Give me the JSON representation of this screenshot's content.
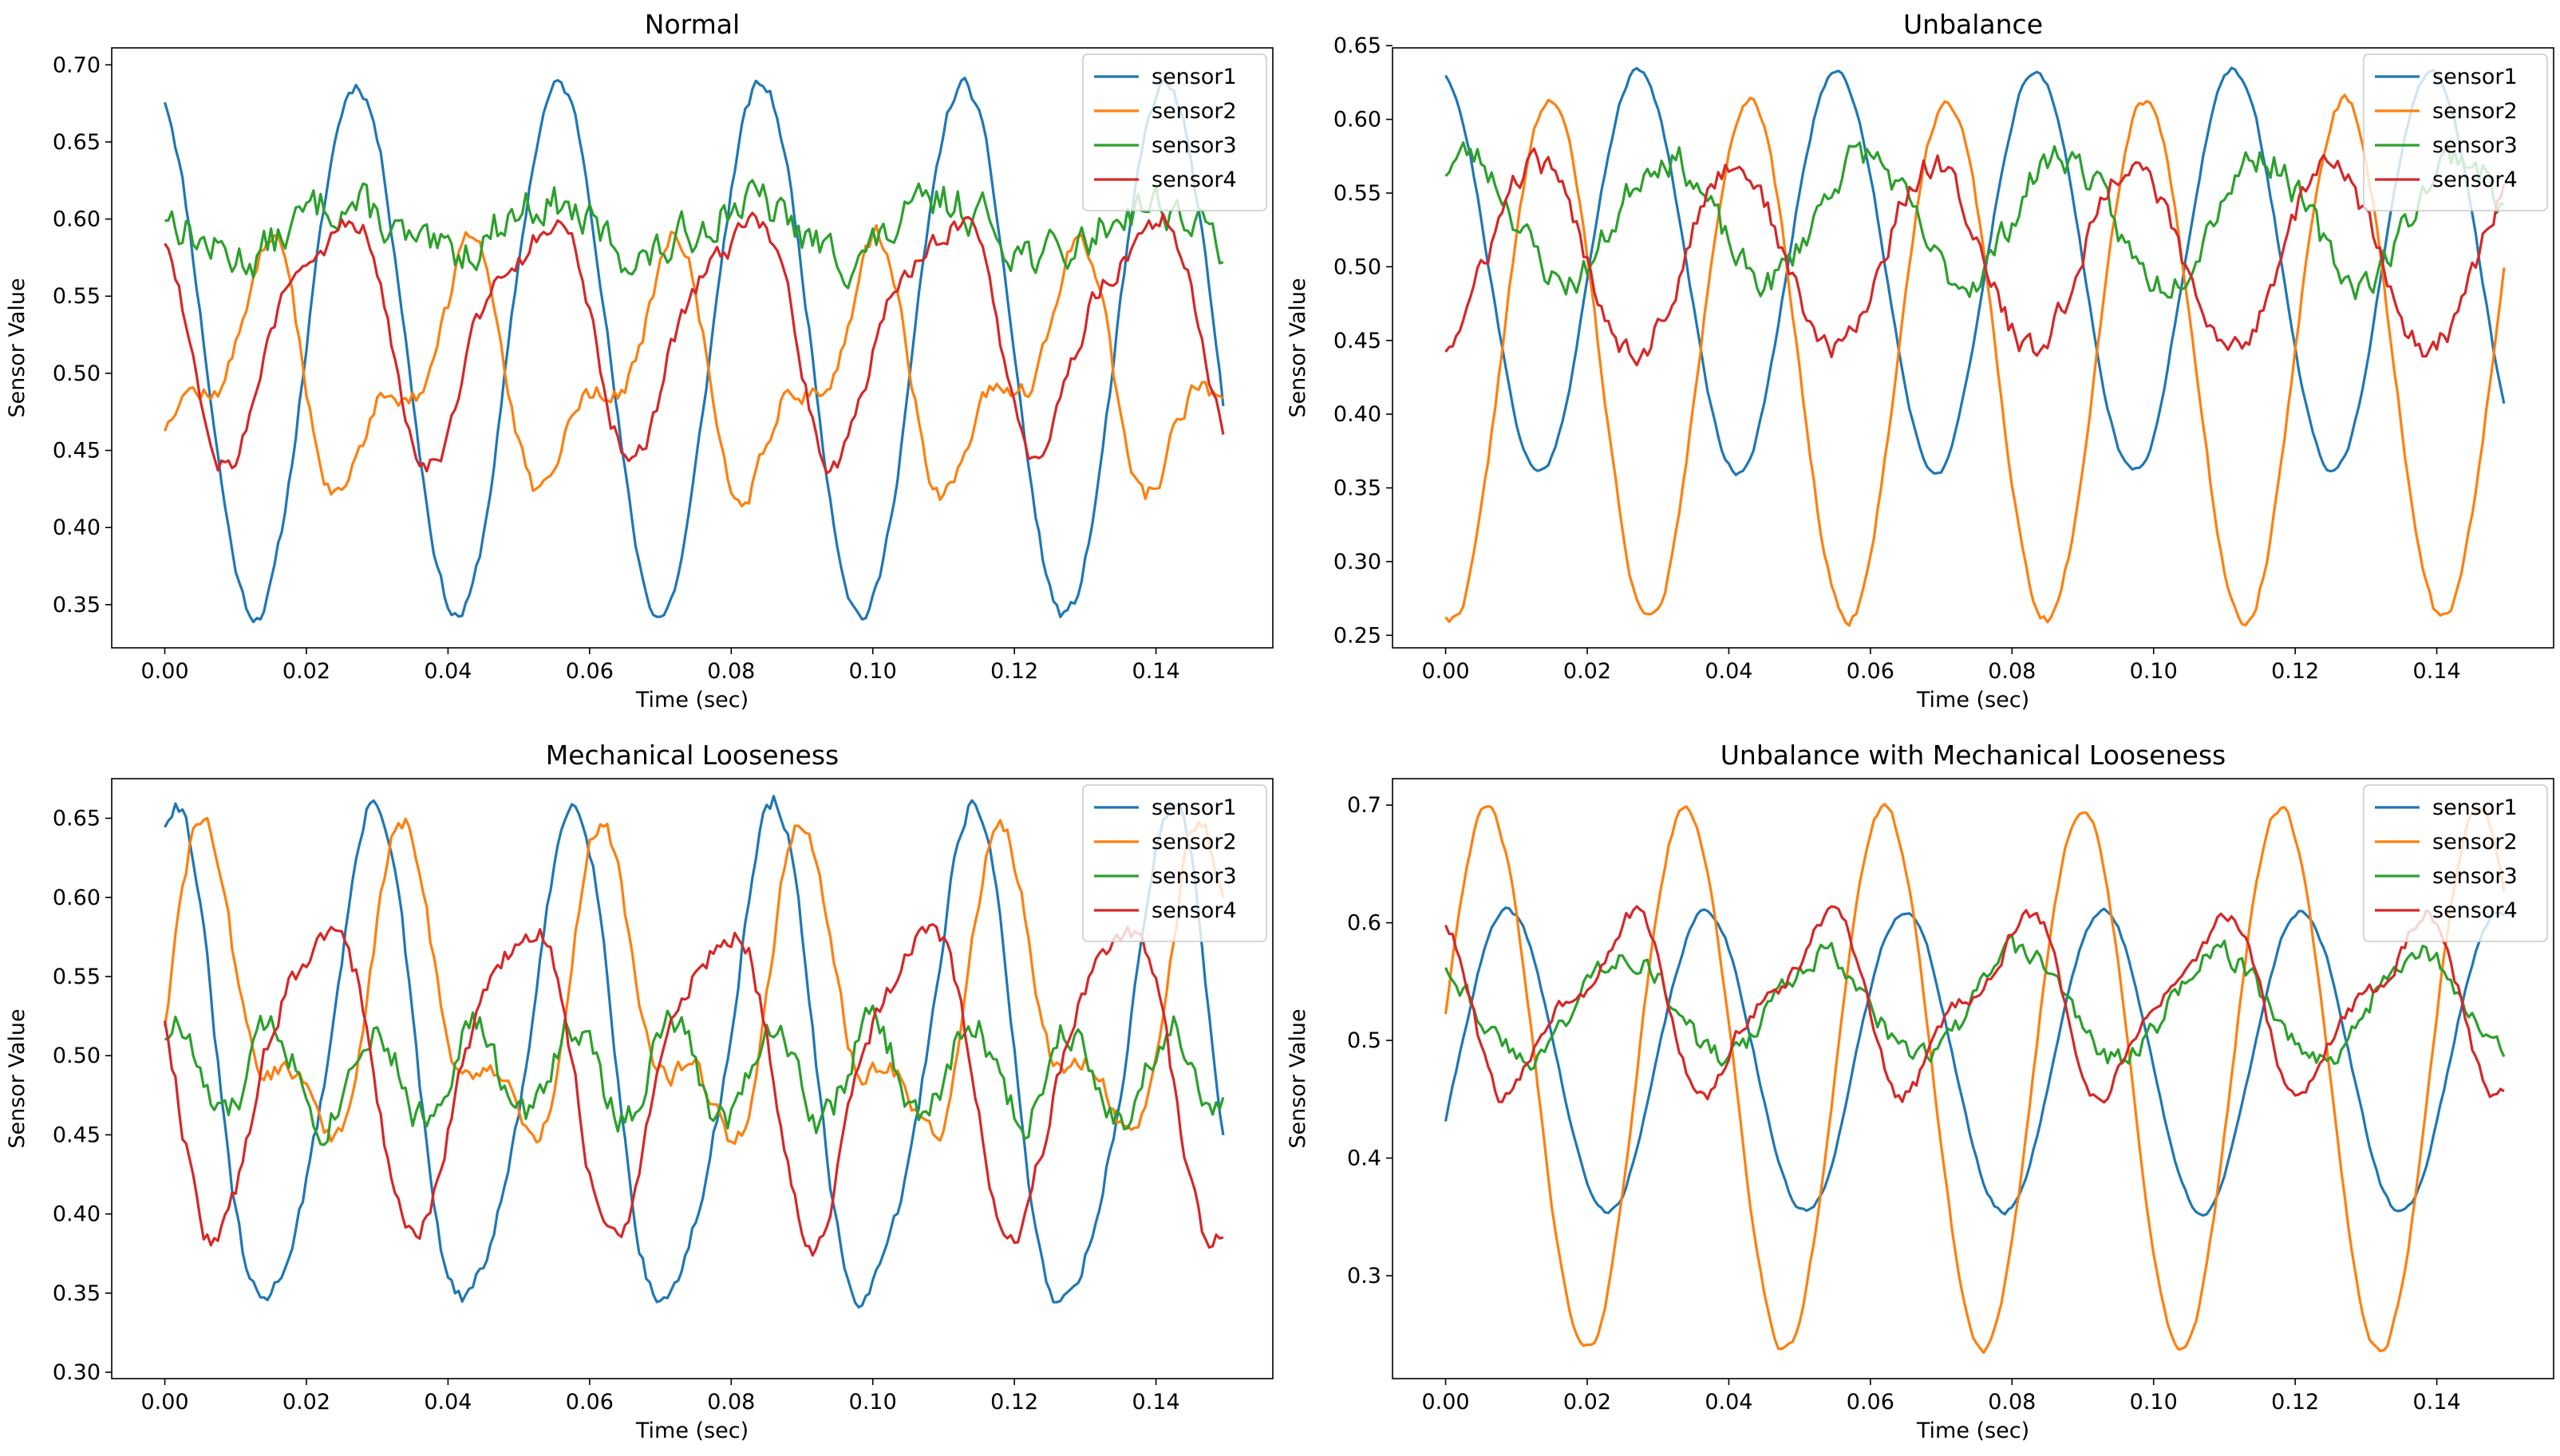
{
  "figure": {
    "layout": "2x2 grid"
  },
  "chart_data": [
    {
      "type": "line",
      "title": "Normal",
      "xlabel": "Time (sec)",
      "ylabel": "Sensor Value",
      "xlim": [
        -0.0075,
        0.1565
      ],
      "ylim": [
        0.322,
        0.711
      ],
      "xticks": [
        0.0,
        0.02,
        0.04,
        0.06,
        0.08,
        0.1,
        0.12,
        0.14
      ],
      "yticks": [
        0.35,
        0.4,
        0.45,
        0.5,
        0.55,
        0.6,
        0.65,
        0.7
      ],
      "tick_decimals": 2,
      "grid": false,
      "legend": "top-right",
      "series": [
        {
          "name": "sensor1",
          "color": "#1f77b4",
          "type": "sin",
          "offset": 0.515,
          "amp": 0.172,
          "freq": 35.0,
          "phase": 1.9,
          "noise": 0.004,
          "seed": 11
        },
        {
          "name": "sensor2",
          "color": "#ff7f0e",
          "type": "sin2",
          "offset": 0.498,
          "amp": 0.062,
          "freq": 35.0,
          "phase": -1.3,
          "amp2": 0.035,
          "freq2": 70.0,
          "phase2": 0.9,
          "noise": 0.006,
          "seed": 12
        },
        {
          "name": "sensor3",
          "color": "#2ca02c",
          "type": "sin",
          "offset": 0.593,
          "amp": 0.018,
          "freq": 35.0,
          "phase": 2.4,
          "noise": 0.012,
          "seed": 13
        },
        {
          "name": "sensor4",
          "color": "#d62728",
          "type": "sin2",
          "offset": 0.532,
          "amp": 0.072,
          "freq": 35.0,
          "phase": 2.6,
          "amp2": 0.02,
          "freq2": 70.0,
          "phase2": 1.2,
          "noise": 0.007,
          "seed": 14
        }
      ]
    },
    {
      "type": "line",
      "title": "Unbalance",
      "xlabel": "Time (sec)",
      "ylabel": "Sensor Value",
      "xlim": [
        -0.0075,
        0.1565
      ],
      "ylim": [
        0.2415,
        0.6485
      ],
      "xticks": [
        0.0,
        0.02,
        0.04,
        0.06,
        0.08,
        0.1,
        0.12,
        0.14
      ],
      "yticks": [
        0.25,
        0.3,
        0.35,
        0.4,
        0.45,
        0.5,
        0.55,
        0.6,
        0.65
      ],
      "tick_decimals": 2,
      "grid": false,
      "legend": "top-right",
      "series": [
        {
          "name": "sensor1",
          "color": "#1f77b4",
          "type": "sin",
          "offset": 0.497,
          "amp": 0.136,
          "freq": 35.7,
          "phase": 1.75,
          "noise": 0.002,
          "seed": 21
        },
        {
          "name": "sensor2",
          "color": "#ff7f0e",
          "type": "sin",
          "offset": 0.437,
          "amp": 0.176,
          "freq": 35.7,
          "phase": -1.75,
          "noise": 0.003,
          "seed": 22
        },
        {
          "name": "sensor3",
          "color": "#2ca02c",
          "type": "sin",
          "offset": 0.533,
          "amp": 0.043,
          "freq": 35.7,
          "phase": 0.9,
          "noise": 0.01,
          "seed": 23
        },
        {
          "name": "sensor4",
          "color": "#d62728",
          "type": "sin",
          "offset": 0.507,
          "amp": 0.063,
          "freq": 35.7,
          "phase": -1.3,
          "noise": 0.008,
          "seed": 24
        }
      ]
    },
    {
      "type": "line",
      "title": "Mechanical Looseness",
      "xlabel": "Time (sec)",
      "ylabel": "Sensor Value",
      "xlim": [
        -0.0075,
        0.1565
      ],
      "ylim": [
        0.296,
        0.675
      ],
      "xticks": [
        0.0,
        0.02,
        0.04,
        0.06,
        0.08,
        0.1,
        0.12,
        0.14
      ],
      "yticks": [
        0.3,
        0.35,
        0.4,
        0.45,
        0.5,
        0.55,
        0.6,
        0.65
      ],
      "tick_decimals": 2,
      "grid": false,
      "legend": "top-right",
      "series": [
        {
          "name": "sensor1",
          "color": "#1f77b4",
          "type": "sin2",
          "offset": 0.488,
          "amp": 0.154,
          "freq": 35.5,
          "phase": 1.35,
          "amp2": 0.022,
          "freq2": 71.0,
          "phase2": 0.4,
          "noise": 0.005,
          "seed": 31
        },
        {
          "name": "sensor2",
          "color": "#ff7f0e",
          "type": "sin2",
          "offset": 0.528,
          "amp": 0.082,
          "freq": 35.5,
          "phase": 0.2,
          "amp2": 0.04,
          "freq2": 71.0,
          "phase2": -0.6,
          "noise": 0.006,
          "seed": 32
        },
        {
          "name": "sensor3",
          "color": "#2ca02c",
          "type": "sin",
          "offset": 0.49,
          "amp": 0.03,
          "freq": 71.0,
          "phase": 1.0,
          "noise": 0.01,
          "seed": 33
        },
        {
          "name": "sensor4",
          "color": "#d62728",
          "type": "sin2",
          "offset": 0.494,
          "amp": 0.094,
          "freq": 35.5,
          "phase": 3.0,
          "amp2": 0.02,
          "freq2": 71.0,
          "phase2": 2.0,
          "noise": 0.007,
          "seed": 34
        }
      ]
    },
    {
      "type": "line",
      "title": "Unbalance with Mechanical Looseness",
      "xlabel": "Time (sec)",
      "ylabel": "Sensor Value",
      "xlim": [
        -0.0075,
        0.1565
      ],
      "ylim": [
        0.2125,
        0.7225
      ],
      "xticks": [
        0.0,
        0.02,
        0.04,
        0.06,
        0.08,
        0.1,
        0.12,
        0.14
      ],
      "yticks": [
        0.3,
        0.4,
        0.5,
        0.6,
        0.7
      ],
      "tick_decimals": 1,
      "grid": false,
      "legend": "top-right",
      "series": [
        {
          "name": "sensor1",
          "color": "#1f77b4",
          "type": "sin",
          "offset": 0.482,
          "amp": 0.128,
          "freq": 35.7,
          "phase": -0.4,
          "noise": 0.002,
          "seed": 41
        },
        {
          "name": "sensor2",
          "color": "#ff7f0e",
          "type": "sin",
          "offset": 0.467,
          "amp": 0.23,
          "freq": 35.7,
          "phase": 0.25,
          "noise": 0.003,
          "seed": 42
        },
        {
          "name": "sensor3",
          "color": "#2ca02c",
          "type": "sin",
          "offset": 0.53,
          "amp": 0.045,
          "freq": 35.7,
          "phase": 2.2,
          "noise": 0.009,
          "seed": 43
        },
        {
          "name": "sensor4",
          "color": "#d62728",
          "type": "sin2",
          "offset": 0.532,
          "amp": 0.065,
          "freq": 35.7,
          "phase": 2.4,
          "amp2": 0.025,
          "freq2": 71.4,
          "phase2": 1.5,
          "noise": 0.006,
          "seed": 44
        }
      ]
    }
  ]
}
